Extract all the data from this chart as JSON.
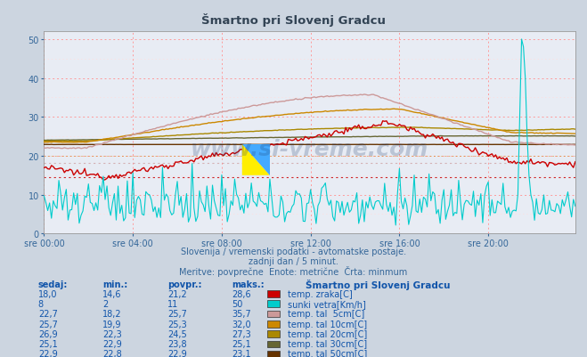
{
  "title": "Šmartno pri Slovenj Gradcu",
  "bg_color": "#ccd5e0",
  "plot_bg_color": "#e8ecf4",
  "grid_color_major": "#ff9999",
  "grid_color_minor": "#ffdddd",
  "xlabel_color": "#336699",
  "text_color": "#336699",
  "xlim": [
    0,
    287
  ],
  "ylim": [
    0,
    52
  ],
  "yticks": [
    0,
    10,
    20,
    30,
    40,
    50
  ],
  "xtick_labels": [
    "sre 00:00",
    "sre 04:00",
    "sre 08:00",
    "sre 12:00",
    "sre 16:00",
    "sre 20:00"
  ],
  "xtick_positions": [
    0,
    48,
    96,
    144,
    192,
    240
  ],
  "subtitle1": "Slovenija / vremenski podatki - avtomatske postaje.",
  "subtitle2": "zadnji dan / 5 minut.",
  "subtitle3": "Meritve: povprečne  Enote: metrične  Črta: minmum",
  "table_headers": [
    "sedaj:",
    "min.:",
    "povpr.:",
    "maks.:"
  ],
  "table_col_title": "Šmartno pri Slovenj Gradcu",
  "series": [
    {
      "name": "temp. zraka[C]",
      "color": "#cc0000",
      "min_val": 14.6,
      "avg_val": 21.2,
      "max_val": 28.6,
      "cur_val": 18.0,
      "legend_color": "#cc0000"
    },
    {
      "name": "sunki vetra[Km/h]",
      "color": "#00cccc",
      "min_val": 2,
      "avg_val": 11,
      "max_val": 50,
      "cur_val": 8,
      "legend_color": "#00cccc"
    },
    {
      "name": "temp. tal  5cm[C]",
      "color": "#cc9999",
      "min_val": 18.2,
      "avg_val": 25.7,
      "max_val": 35.7,
      "cur_val": 22.7,
      "legend_color": "#cc9999"
    },
    {
      "name": "temp. tal 10cm[C]",
      "color": "#cc8800",
      "min_val": 19.9,
      "avg_val": 25.3,
      "max_val": 32.0,
      "cur_val": 25.7,
      "legend_color": "#cc8800"
    },
    {
      "name": "temp. tal 20cm[C]",
      "color": "#aa8800",
      "min_val": 22.3,
      "avg_val": 24.5,
      "max_val": 27.3,
      "cur_val": 26.9,
      "legend_color": "#aa8800"
    },
    {
      "name": "temp. tal 30cm[C]",
      "color": "#666633",
      "min_val": 22.9,
      "avg_val": 23.8,
      "max_val": 25.1,
      "cur_val": 25.1,
      "legend_color": "#666633"
    },
    {
      "name": "temp. tal 50cm[C]",
      "color": "#663300",
      "min_val": 22.8,
      "avg_val": 22.9,
      "max_val": 23.1,
      "cur_val": 22.9,
      "legend_color": "#663300"
    }
  ],
  "watermark_text": "www.si-vreme.com"
}
